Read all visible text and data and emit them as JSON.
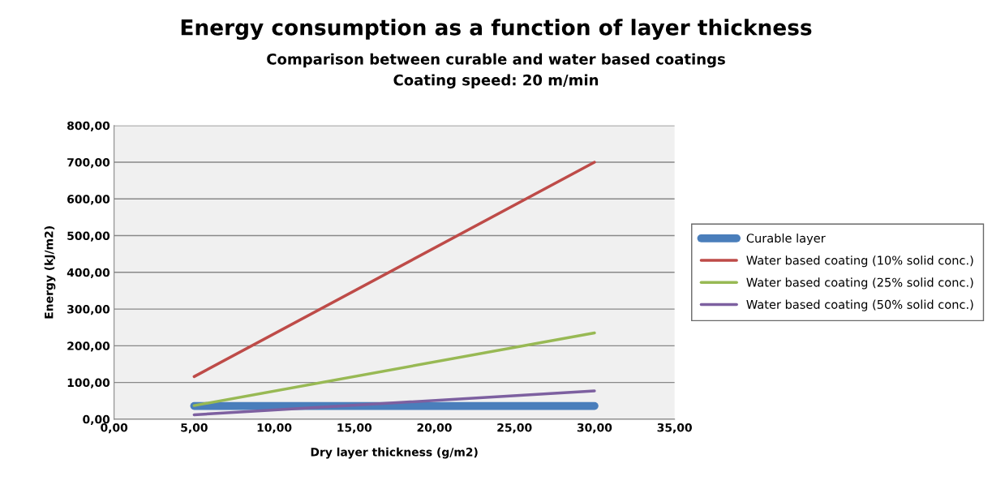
{
  "chart_data": {
    "type": "line",
    "title": "Energy consumption as a function of layer thickness",
    "subtitle": "Comparison between curable and water based coatings\nCoating speed: 20 m/min",
    "xlabel": "Dry layer thickness (g/m2)",
    "ylabel": "Energy (kJ/m2)",
    "x": [
      5,
      30
    ],
    "series": [
      {
        "name": "Curable layer",
        "color": "#4a7ebb",
        "values": [
          36,
          36
        ]
      },
      {
        "name": "Water based coating (10% solid conc.)",
        "color": "#be4b48",
        "values": [
          116,
          700
        ]
      },
      {
        "name": "Water based coating (25% solid conc.)",
        "color": "#98b954",
        "values": [
          37,
          235
        ]
      },
      {
        "name": "Water based coating (50% solid conc.)",
        "color": "#7d60a0",
        "values": [
          12,
          77
        ]
      }
    ],
    "xlim": [
      0,
      35
    ],
    "ylim": [
      0,
      800
    ],
    "xticks": [
      {
        "value": 0,
        "label": "0,00"
      },
      {
        "value": 5,
        "label": "5,00"
      },
      {
        "value": 10,
        "label": "10,00"
      },
      {
        "value": 15,
        "label": "15,00"
      },
      {
        "value": 20,
        "label": "20,00"
      },
      {
        "value": 25,
        "label": "25,00"
      },
      {
        "value": 30,
        "label": "30,00"
      },
      {
        "value": 35,
        "label": "35,00"
      }
    ],
    "yticks": [
      {
        "value": 0,
        "label": "0,00"
      },
      {
        "value": 100,
        "label": "100,00"
      },
      {
        "value": 200,
        "label": "200,00"
      },
      {
        "value": 300,
        "label": "300,00"
      },
      {
        "value": 400,
        "label": "400,00"
      },
      {
        "value": 500,
        "label": "500,00"
      },
      {
        "value": 600,
        "label": "600,00"
      },
      {
        "value": 700,
        "label": "700,00"
      },
      {
        "value": 800,
        "label": "800,00"
      }
    ],
    "grid": "y",
    "legend": "right",
    "marker": "none",
    "line_style": "solid"
  }
}
